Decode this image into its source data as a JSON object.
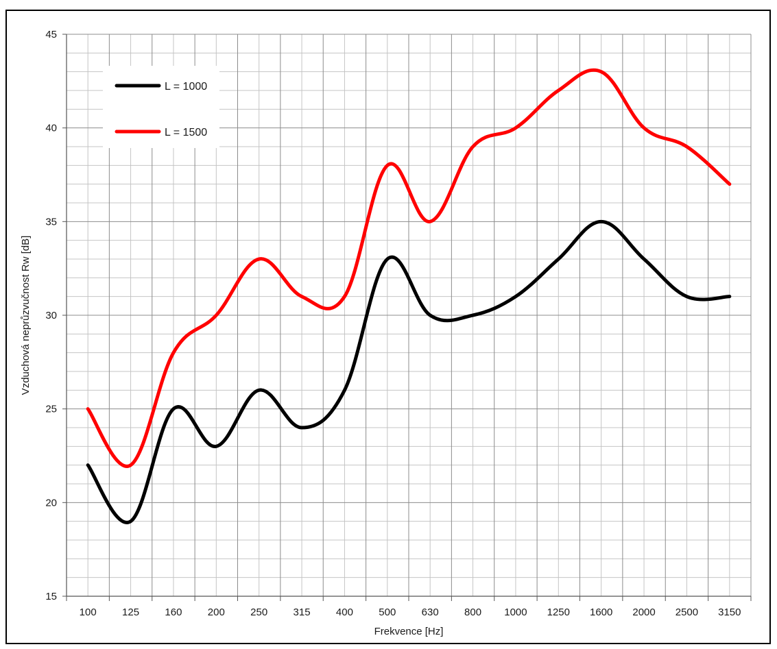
{
  "chart_data": {
    "type": "line",
    "title": "",
    "xlabel": "Frekvence [Hz]",
    "ylabel": "Vzduchová neprůzvučnost Rw [dB]",
    "categories": [
      "100",
      "125",
      "160",
      "200",
      "250",
      "315",
      "400",
      "500",
      "630",
      "800",
      "1000",
      "1250",
      "1600",
      "2000",
      "2500",
      "3150"
    ],
    "yticks": [
      "15",
      "20",
      "25",
      "30",
      "35",
      "40",
      "45"
    ],
    "ylim": [
      15,
      45
    ],
    "grid": true,
    "legend_position": "top-left",
    "series": [
      {
        "name": "L = 1000",
        "color": "#000000",
        "values": [
          22,
          19,
          25,
          23,
          26,
          24,
          26,
          33,
          30,
          30,
          31,
          33,
          35,
          33,
          31,
          31
        ]
      },
      {
        "name": "L = 1500",
        "color": "#ff0000",
        "values": [
          25,
          22,
          28,
          30,
          33,
          31,
          31,
          38,
          35,
          39,
          40,
          42,
          43,
          40,
          39,
          37
        ]
      }
    ]
  }
}
